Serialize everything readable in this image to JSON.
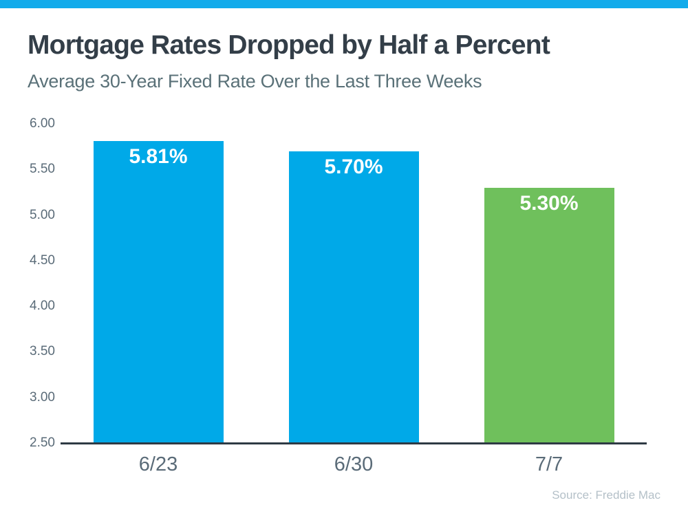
{
  "accent_colors": {
    "top_bar": "#12ABEB",
    "bar_blue": "#00A9E8",
    "bar_green": "#6FC05C",
    "axis_line": "#2E3A44",
    "title_text": "#333E48",
    "subtitle_text": "#5A7178",
    "tick_text": "#5A6B78",
    "source_text": "#B4C0C8"
  },
  "chart_data": {
    "type": "bar",
    "title": "Mortgage Rates Dropped by Half a Percent",
    "subtitle": "Average 30-Year Fixed Rate Over the Last Three Weeks",
    "categories": [
      "6/23",
      "6/30",
      "7/7"
    ],
    "values": [
      5.81,
      5.7,
      5.3
    ],
    "value_labels": [
      "5.81%",
      "5.70%",
      "5.30%"
    ],
    "bar_colors": [
      "#00A9E8",
      "#00A9E8",
      "#6FC05C"
    ],
    "ylim": [
      2.5,
      6.0
    ],
    "yticks": [
      2.5,
      3.0,
      3.5,
      4.0,
      4.5,
      5.0,
      5.5,
      6.0
    ],
    "ytick_labels": [
      "2.50",
      "3.00",
      "3.50",
      "4.00",
      "4.50",
      "5.00",
      "5.50",
      "6.00"
    ],
    "grid": false,
    "legend": null,
    "xlabel": "",
    "ylabel": "",
    "source": "Source: Freddie Mac"
  }
}
